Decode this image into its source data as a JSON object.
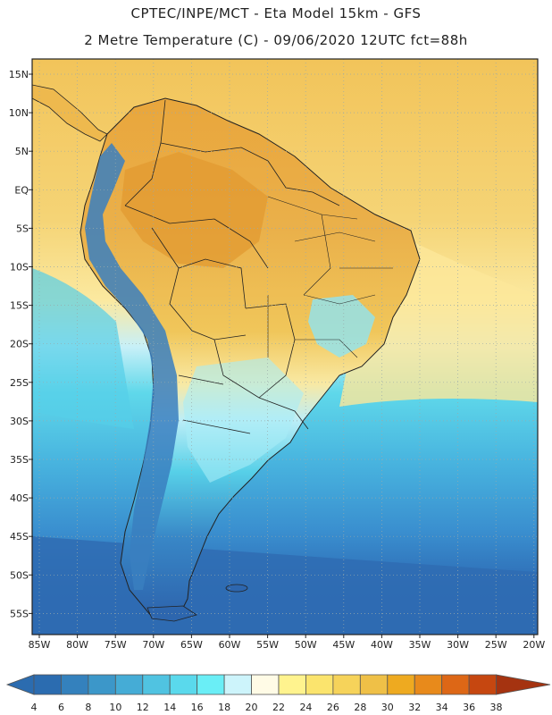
{
  "header": {
    "line1": "CPTEC/INPE/MCT -  Eta Model 15km - GFS",
    "line2": "2 Metre Temperature (C) - 09/06/2020 12UTC fct=88h"
  },
  "axes": {
    "lat_labels": [
      "15N",
      "10N",
      "5N",
      "EQ",
      "5S",
      "10S",
      "15S",
      "20S",
      "25S",
      "30S",
      "35S",
      "40S",
      "45S",
      "50S",
      "55S"
    ],
    "lon_labels": [
      "85W",
      "80W",
      "75W",
      "70W",
      "65W",
      "60W",
      "55W",
      "50W",
      "45W",
      "40W",
      "35W",
      "30W",
      "25W",
      "20W"
    ]
  },
  "colorbar": {
    "ticks": [
      "4",
      "6",
      "8",
      "10",
      "12",
      "14",
      "16",
      "18",
      "20",
      "22",
      "24",
      "26",
      "28",
      "30",
      "32",
      "34",
      "36",
      "38"
    ],
    "colors": [
      "#2b6cb0",
      "#3481bd",
      "#3c97c9",
      "#45acd6",
      "#50c3e1",
      "#5ad9ec",
      "#6aeef6",
      "#cdf4fb",
      "#fffbe6",
      "#fff38e",
      "#fbe46d",
      "#f6d35a",
      "#efc047",
      "#eeaa20",
      "#e88a1b",
      "#dd6716",
      "#c64710",
      "#a53310"
    ]
  },
  "colors": {
    "ocean_deep": "#2d6ab4",
    "ocean_mid": "#3a8fd0",
    "ocean_light": "#45b5e0",
    "ocean_cyan": "#5ad6ea",
    "ocean_pale": "#c6f0f8",
    "ocean_warm": "#fbe9a0",
    "ocean_tropic": "#f4cc5e",
    "land_hot": "#e6a237",
    "land_warm": "#efbd4d",
    "andes": "#3574b4",
    "border": "#222222"
  }
}
